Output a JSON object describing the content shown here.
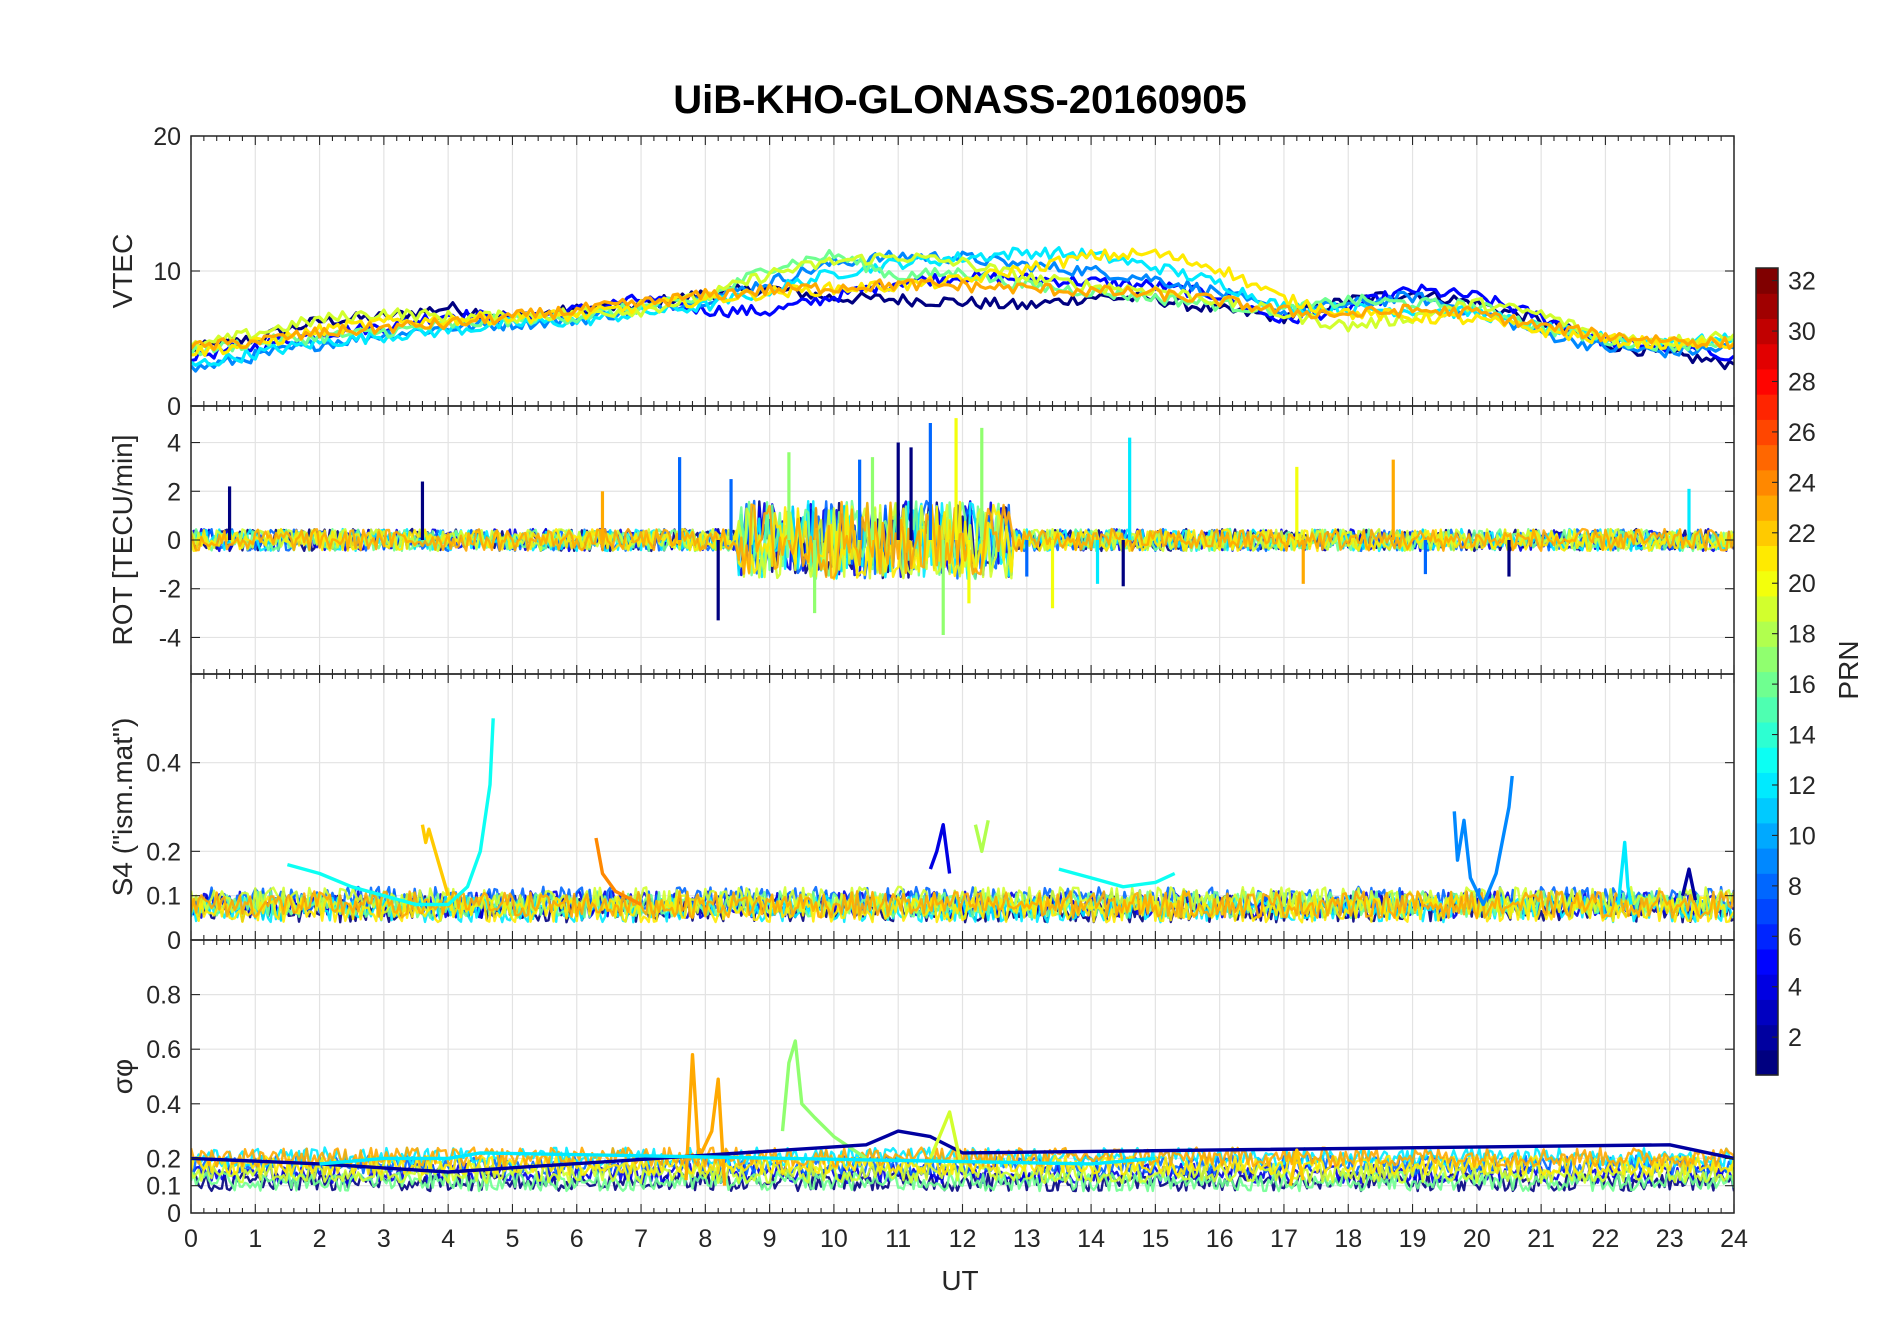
{
  "chart_data": {
    "type": "line",
    "title": "UiB-KHO-GLONASS-20160905",
    "xlabel": "UT",
    "xlim": [
      0,
      24
    ],
    "xticks": [
      "0",
      "1",
      "2",
      "3",
      "4",
      "5",
      "6",
      "7",
      "8",
      "9",
      "10",
      "11",
      "12",
      "13",
      "14",
      "15",
      "16",
      "17",
      "18",
      "19",
      "20",
      "21",
      "22",
      "23",
      "24"
    ],
    "colorbar": {
      "label": "PRN",
      "clim": [
        1,
        32
      ],
      "ticks": [
        "2",
        "4",
        "6",
        "8",
        "10",
        "12",
        "14",
        "16",
        "18",
        "20",
        "22",
        "24",
        "26",
        "28",
        "30",
        "32"
      ]
    },
    "panels": [
      {
        "ylabel": "VTEC",
        "ylim": [
          0,
          20
        ],
        "yticks": [
          "0",
          "10",
          "20"
        ],
        "series": [
          {
            "prn": 1,
            "x": [
              0,
              1,
              2,
              3,
              4,
              5,
              6,
              7,
              8,
              9,
              10,
              11,
              12,
              13,
              14,
              15,
              16,
              17,
              18,
              19,
              20,
              21,
              22,
              23,
              24
            ],
            "values": [
              4.2,
              5.0,
              6.3,
              6.6,
              7.3,
              6.6,
              7.1,
              7.5,
              8.3,
              8.7,
              8.0,
              7.9,
              7.7,
              7.4,
              8.1,
              7.9,
              7.1,
              6.6,
              7.8,
              8.4,
              7.6,
              6.3,
              4.6,
              3.8,
              3.1
            ]
          },
          {
            "prn": 5,
            "x": [
              0,
              1,
              2,
              3,
              4,
              5,
              6,
              7,
              8,
              9,
              10,
              11,
              12,
              13,
              14,
              15,
              16,
              17,
              18,
              19,
              20,
              21,
              22,
              23,
              24
            ],
            "values": [
              3.7,
              4.4,
              5.4,
              5.9,
              6.8,
              6.5,
              7.1,
              7.9,
              7.1,
              7.0,
              8.1,
              9.2,
              9.6,
              9.4,
              9.2,
              8.9,
              8.2,
              6.3,
              7.3,
              8.6,
              8.1,
              6.6,
              4.8,
              4.4,
              3.7
            ]
          },
          {
            "prn": 9,
            "x": [
              0,
              1,
              2,
              3,
              4,
              5,
              6,
              7,
              8,
              9,
              10,
              11,
              12,
              13,
              14,
              15,
              16,
              17,
              18,
              19,
              20,
              21,
              22,
              23,
              24
            ],
            "values": [
              2.7,
              3.7,
              4.6,
              5.3,
              5.8,
              6.1,
              6.4,
              7.2,
              7.9,
              9.2,
              10.6,
              11.1,
              11.0,
              10.4,
              10.0,
              9.4,
              8.4,
              6.9,
              7.5,
              8.1,
              7.0,
              5.4,
              4.3,
              4.0,
              4.3
            ]
          },
          {
            "prn": 12,
            "x": [
              0,
              1,
              2,
              3,
              4,
              5,
              6,
              7,
              8,
              9,
              10,
              11,
              12,
              13,
              14,
              15,
              16,
              17,
              18,
              19,
              20,
              21,
              22,
              23,
              24
            ],
            "values": [
              3.0,
              3.9,
              4.7,
              5.2,
              5.6,
              6.1,
              6.3,
              6.9,
              7.4,
              8.6,
              9.8,
              10.6,
              11.0,
              11.4,
              11.2,
              10.3,
              9.1,
              7.3,
              7.2,
              7.1,
              6.9,
              5.8,
              5.0,
              4.8,
              4.9
            ]
          },
          {
            "prn": 16,
            "x": [
              0,
              1,
              2,
              3,
              4,
              5,
              6,
              7,
              8,
              9,
              10,
              11,
              12,
              13,
              14,
              15,
              16,
              17,
              18,
              19,
              20,
              21,
              22,
              23,
              24
            ],
            "values": [
              4.1,
              4.7,
              5.1,
              5.5,
              6.0,
              6.4,
              6.6,
              7.3,
              7.9,
              10.3,
              11.2,
              9.6,
              9.9,
              8.9,
              8.5,
              8.0,
              7.5,
              7.1,
              7.8,
              7.6,
              7.4,
              5.8,
              4.9,
              4.5,
              4.8
            ]
          },
          {
            "prn": 19,
            "x": [
              0,
              1,
              2,
              3,
              4,
              5,
              6,
              7,
              8,
              9,
              10,
              11,
              12,
              13,
              14,
              15,
              16,
              17,
              18,
              19,
              20,
              21,
              22,
              23,
              24
            ],
            "values": [
              4.3,
              5.4,
              6.4,
              6.9,
              6.6,
              6.6,
              6.9,
              7.1,
              8.1,
              9.8,
              10.7,
              11.1,
              10.6,
              9.5,
              8.9,
              8.6,
              7.8,
              6.8,
              5.9,
              6.6,
              7.6,
              6.8,
              5.1,
              4.8,
              5.3
            ]
          },
          {
            "prn": 21,
            "x": [
              0,
              1,
              2,
              3,
              4,
              5,
              6,
              7,
              8,
              9,
              10,
              11,
              12,
              13,
              14,
              15,
              16,
              17,
              18,
              19,
              20,
              21,
              22,
              23,
              24
            ],
            "values": [
              4.0,
              4.6,
              5.6,
              6.2,
              6.4,
              6.6,
              6.7,
              7.4,
              7.9,
              8.4,
              8.7,
              8.9,
              9.3,
              10.2,
              11.1,
              11.3,
              10.2,
              7.9,
              6.9,
              6.6,
              6.4,
              5.6,
              4.9,
              4.6,
              4.7
            ]
          },
          {
            "prn": 23,
            "x": [
              0,
              1,
              2,
              3,
              4,
              5,
              6,
              7,
              8,
              9,
              10,
              11,
              12,
              13,
              14,
              15,
              16,
              17,
              18,
              19,
              20,
              21,
              22,
              23,
              24
            ],
            "values": [
              4.3,
              4.8,
              5.4,
              5.8,
              6.1,
              6.6,
              7.1,
              7.6,
              8.2,
              8.6,
              8.8,
              9.0,
              8.9,
              8.7,
              8.5,
              8.3,
              7.8,
              7.0,
              6.8,
              7.1,
              6.9,
              5.9,
              5.2,
              4.9,
              4.6
            ]
          }
        ]
      },
      {
        "ylabel": "ROT [TECU/min]",
        "ylim": [
          -5.5,
          5.5
        ],
        "yticks": [
          "-4",
          "-2",
          "0",
          "2",
          "4"
        ],
        "series": [
          {
            "prn": 1,
            "x": [
              0.6,
              3.6,
              8.2,
              11.0,
              11.2,
              14.5,
              20.5
            ],
            "values": [
              2.2,
              2.4,
              -3.3,
              4.0,
              3.8,
              -1.9,
              -1.5
            ]
          },
          {
            "prn": 8,
            "x": [
              7.6,
              8.4,
              10.4,
              11.5,
              13.0,
              19.2
            ],
            "values": [
              3.4,
              2.5,
              3.3,
              4.8,
              -1.5,
              -1.4
            ]
          },
          {
            "prn": 12,
            "x": [
              14.6,
              14.1,
              23.3
            ],
            "values": [
              4.2,
              -1.8,
              2.1
            ]
          },
          {
            "prn": 17,
            "x": [
              9.3,
              9.7,
              10.6,
              11.7,
              12.3
            ],
            "values": [
              3.6,
              -3.0,
              3.4,
              -3.9,
              4.6
            ]
          },
          {
            "prn": 20,
            "x": [
              11.9,
              12.1,
              13.4,
              17.2
            ],
            "values": [
              5.0,
              -2.6,
              -2.8,
              3.0
            ]
          },
          {
            "prn": 23,
            "x": [
              6.4,
              17.3,
              18.7
            ],
            "values": [
              2.0,
              -1.8,
              3.3
            ]
          }
        ]
      },
      {
        "ylabel": "S4 (\"ism.mat\")",
        "ylim": [
          0,
          0.6
        ],
        "yticks": [
          "0",
          "0.1",
          "0.2",
          "0.4"
        ],
        "series": [
          {
            "prn": 13,
            "x": [
              1.5,
              2.0,
              2.5,
              3.0,
              3.5,
              4.0,
              4.3,
              4.5,
              4.65,
              4.7
            ],
            "values": [
              0.17,
              0.15,
              0.12,
              0.1,
              0.08,
              0.08,
              0.12,
              0.2,
              0.35,
              0.5
            ]
          },
          {
            "prn": 22,
            "x": [
              3.6,
              3.65,
              3.7,
              3.8,
              4.0
            ],
            "values": [
              0.26,
              0.22,
              0.25,
              0.2,
              0.1
            ]
          },
          {
            "prn": 24,
            "x": [
              6.3,
              6.4,
              6.6,
              7.0
            ],
            "values": [
              0.23,
              0.15,
              0.11,
              0.08
            ]
          },
          {
            "prn": 4,
            "x": [
              11.5,
              11.6,
              11.7,
              11.8
            ],
            "values": [
              0.16,
              0.2,
              0.26,
              0.15
            ]
          },
          {
            "prn": 18,
            "x": [
              12.2,
              12.3,
              12.4
            ],
            "values": [
              0.26,
              0.2,
              0.27
            ]
          },
          {
            "prn": 13,
            "x": [
              13.5,
              14.0,
              14.5,
              15.0,
              15.3
            ],
            "values": [
              0.16,
              0.14,
              0.12,
              0.13,
              0.15
            ]
          },
          {
            "prn": 9,
            "x": [
              19.65,
              19.7,
              19.8,
              19.9,
              20.1,
              20.3,
              20.5,
              20.55
            ],
            "values": [
              0.29,
              0.18,
              0.27,
              0.14,
              0.08,
              0.15,
              0.3,
              0.37
            ]
          },
          {
            "prn": 12,
            "x": [
              22.2,
              22.3,
              22.35,
              22.4
            ],
            "values": [
              0.08,
              0.22,
              0.12,
              0.08
            ]
          },
          {
            "prn": 2,
            "x": [
              23.2,
              23.3,
              23.4
            ],
            "values": [
              0.1,
              0.16,
              0.09
            ]
          }
        ]
      },
      {
        "ylabel": "σφ",
        "ylim": [
          0,
          1
        ],
        "yticks": [
          "0",
          "0.1",
          "0.2",
          "0.4",
          "0.6",
          "0.8"
        ],
        "series": [
          {
            "prn": 23,
            "x": [
              7.7,
              7.8,
              7.9,
              8.1,
              8.2,
              8.3
            ],
            "values": [
              0.12,
              0.58,
              0.2,
              0.3,
              0.49,
              0.1
            ]
          },
          {
            "prn": 17,
            "x": [
              9.2,
              9.3,
              9.4,
              9.5,
              9.7,
              10.0,
              10.5
            ],
            "values": [
              0.3,
              0.55,
              0.63,
              0.4,
              0.35,
              0.28,
              0.2
            ]
          },
          {
            "prn": 2,
            "x": [
              0,
              2,
              4,
              10.5,
              11,
              11.5,
              12,
              23,
              24
            ],
            "values": [
              0.2,
              0.18,
              0.15,
              0.25,
              0.3,
              0.28,
              0.22,
              0.25,
              0.2
            ]
          },
          {
            "prn": 19,
            "x": [
              11.5,
              11.8,
              12.0
            ],
            "values": [
              0.2,
              0.37,
              0.15
            ]
          },
          {
            "prn": 22,
            "x": [
              17.1,
              17.2,
              17.3
            ],
            "values": [
              0.1,
              0.23,
              0.12
            ]
          },
          {
            "prn": 12,
            "x": [
              2,
              3,
              4,
              4.5,
              14,
              15
            ],
            "values": [
              0.18,
              0.2,
              0.2,
              0.22,
              0.18,
              0.2
            ]
          }
        ]
      }
    ]
  }
}
